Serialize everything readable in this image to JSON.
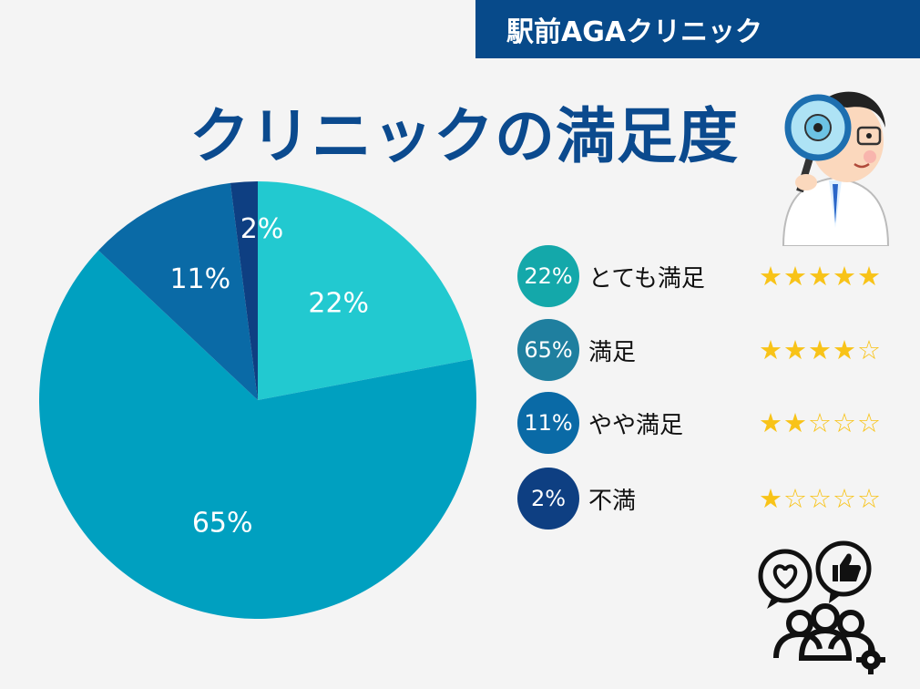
{
  "brand": "駅前AGAクリニック",
  "title": "クリニックの満足度",
  "colors": {
    "brand_bg": "#074a8a",
    "title": "#0b4a8e",
    "star": "#f8c318"
  },
  "chart_data": {
    "type": "pie",
    "slices": [
      {
        "label": "とても満足",
        "value": 22,
        "display": "22%",
        "color": "#22c9d0",
        "badge_color": "#14a8aa",
        "stars": 5
      },
      {
        "label": "満足",
        "value": 65,
        "display": "65%",
        "color": "#00a0c0",
        "badge_color": "#1f7f9f",
        "stars": 4
      },
      {
        "label": "やや満足",
        "value": 11,
        "display": "11%",
        "color": "#0a6aa6",
        "badge_color": "#0a6aa6",
        "stars": 2
      },
      {
        "label": "不満",
        "value": 2,
        "display": "2%",
        "color": "#0e3f82",
        "badge_color": "#0e3f82",
        "stars": 1
      }
    ],
    "start": "12 o'clock",
    "direction": "clockwise"
  },
  "icons": {
    "doctor": "doctor-with-magnifier-icon",
    "feedback": "user-feedback-icon"
  }
}
